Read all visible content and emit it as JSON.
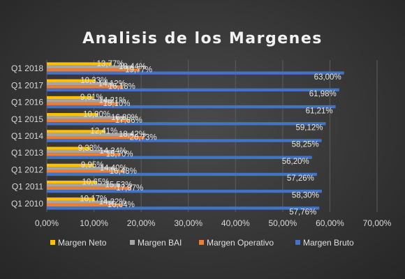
{
  "chart_data": {
    "type": "bar",
    "orientation": "horizontal",
    "title": "Analisis de los Margenes",
    "categories": [
      "Q1 2010",
      "Q1 2011",
      "Q1 2012",
      "Q1 2013",
      "Q1 2014",
      "Q1 2015",
      "Q1 2016",
      "Q1 2017",
      "Q1 2018"
    ],
    "series": [
      {
        "name": "Margen Neto",
        "color": "#ffc000",
        "values": [
          10.17,
          10.65,
          9.95,
          9.33,
          12.41,
          10.9,
          9.81,
          10.33,
          13.77
        ],
        "labels": [
          "10,17%",
          "10,65%",
          "9,95%",
          "9,33%",
          "12,41%",
          "10,90%",
          "9,81%",
          "10,33%",
          "13,77%"
        ]
      },
      {
        "name": "Margen BAI",
        "color": "#a5a5a5",
        "values": [
          14.22,
          15.53,
          14.4,
          14.34,
          18.42,
          16.8,
          14.21,
          14.12,
          18.44
        ],
        "labels": [
          "14,22%",
          "15,53%",
          "14,40%",
          "14,34%",
          "18,42%",
          "16,80%",
          "14,21%",
          "14,12%",
          "18,44%"
        ]
      },
      {
        "name": "Margen Operativo",
        "color": "#ed7d31",
        "values": [
          16.04,
          17.87,
          16.48,
          15.7,
          20.73,
          17.66,
          15.1,
          16.18,
          19.77
        ],
        "labels": [
          "16,04%",
          "17,87%",
          "16,48%",
          "15,70%",
          "20,73%",
          "17,66%",
          "15,10%",
          "16,18%",
          "19,77%"
        ]
      },
      {
        "name": "Margen Bruto",
        "color": "#4472c4",
        "values": [
          57.76,
          58.3,
          57.26,
          56.2,
          58.25,
          59.12,
          61.21,
          61.98,
          63.0
        ],
        "labels": [
          "57,76%",
          "58,30%",
          "57,26%",
          "56,20%",
          "58,25%",
          "59,12%",
          "61,21%",
          "61,98%",
          "63,00%"
        ]
      }
    ],
    "xlim": [
      0,
      70
    ],
    "xticks": [
      "0,00%",
      "10,00%",
      "20,00%",
      "30,00%",
      "40,00%",
      "50,00%",
      "60,00%",
      "70,00%"
    ],
    "grid": "vertical",
    "legend_position": "bottom"
  }
}
